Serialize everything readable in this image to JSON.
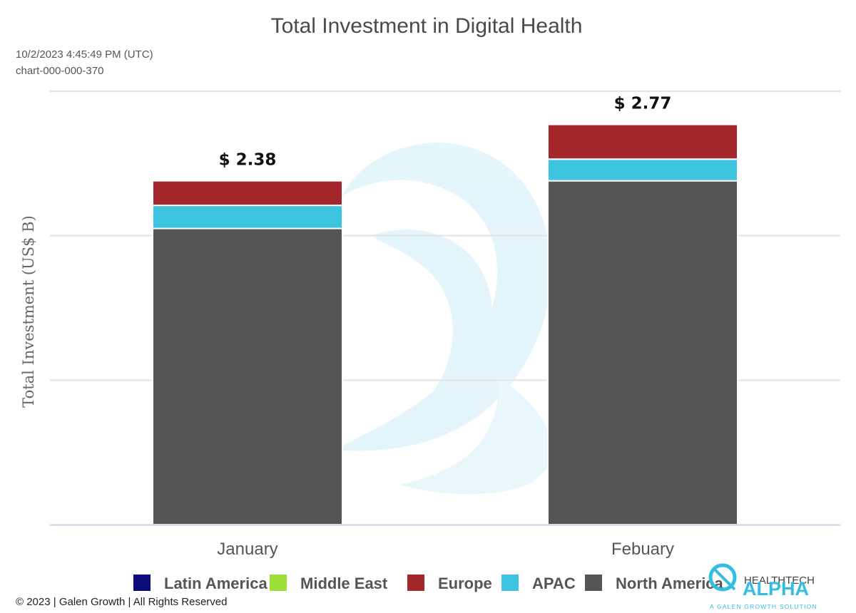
{
  "chart_data": {
    "type": "bar",
    "stacked": true,
    "title": "Total Investment in Digital Health",
    "timestamp": "10/2/2023 4:45:49 PM (UTC)",
    "chart_id": "chart-000-000-370",
    "xlabel": "",
    "ylabel": "Total Investment (US$ B)",
    "ylim": [
      0,
      3.0
    ],
    "grid": true,
    "categories": [
      "January",
      "Febuary"
    ],
    "series": [
      {
        "name": "North America",
        "color": "#555555",
        "values": [
          2.05,
          2.38
        ]
      },
      {
        "name": "APAC",
        "color": "#3cc4e0",
        "values": [
          0.16,
          0.15
        ]
      },
      {
        "name": "Europe",
        "color": "#a4282b",
        "values": [
          0.17,
          0.24
        ]
      },
      {
        "name": "Middle East",
        "color": "#9ee03a",
        "values": [
          0,
          0
        ]
      },
      {
        "name": "Latin America",
        "color": "#0c0b7a",
        "values": [
          0,
          0
        ]
      }
    ],
    "totals": [
      "$ 2.38",
      "$ 2.77"
    ],
    "legend": [
      {
        "name": "Latin America",
        "color": "#0c0b7a"
      },
      {
        "name": "Middle East",
        "color": "#9ee03a"
      },
      {
        "name": "Europe",
        "color": "#a4282b"
      },
      {
        "name": "APAC",
        "color": "#3cc4e0"
      },
      {
        "name": "North America",
        "color": "#555555"
      }
    ],
    "legend_position": "bottom"
  },
  "footer": "© 2023 | Galen Growth | All Rights Reserved",
  "logo": {
    "top": "HEALTHTECH",
    "main": "ALPHA",
    "sub": "A GALEN GROWTH SOLUTION"
  }
}
